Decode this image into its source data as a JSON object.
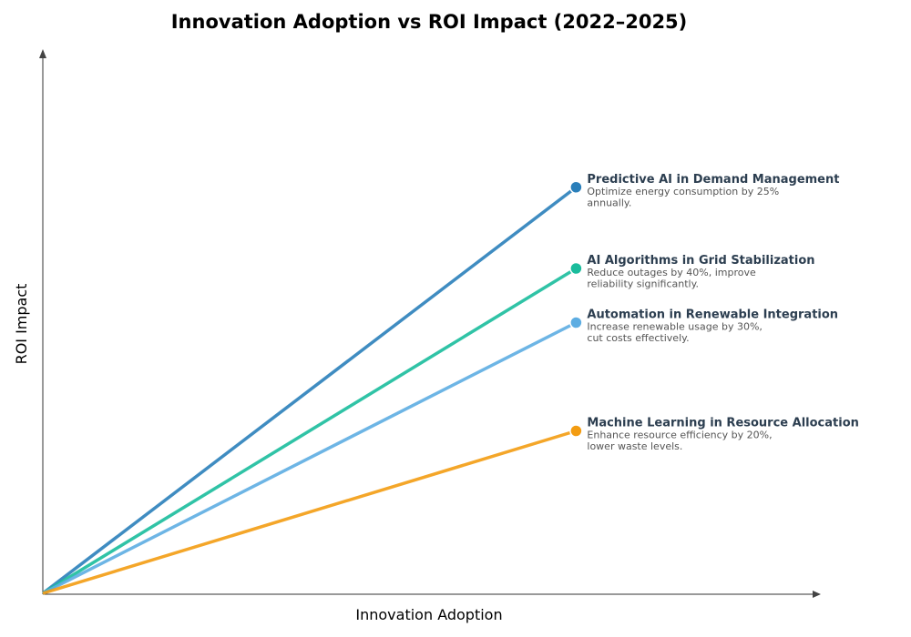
{
  "chart_data": {
    "type": "line",
    "title": "Innovation Adoption vs ROI Impact (2022–2025)",
    "xlabel": "Innovation Adoption",
    "ylabel": "ROI Impact",
    "xlim": [
      0,
      1.02
    ],
    "ylim": [
      0,
      1.0
    ],
    "grid": false,
    "ticks": false,
    "series": [
      {
        "name": "Predictive AI in Demand Management",
        "desc": [
          "Optimize energy consumption by 25%",
          "annually."
        ],
        "color": "#2a7fba",
        "x": [
          0,
          0.7
        ],
        "y": [
          0,
          0.75
        ]
      },
      {
        "name": "AI Algorithms in Grid Stabilization",
        "desc": [
          "Reduce outages by 40%, improve",
          "reliability significantly."
        ],
        "color": "#1abc9c",
        "x": [
          0,
          0.7
        ],
        "y": [
          0,
          0.6
        ]
      },
      {
        "name": "Automation in Renewable Integration",
        "desc": [
          "Increase renewable usage by 30%,",
          "cut costs effectively."
        ],
        "color": "#5dade2",
        "x": [
          0,
          0.7
        ],
        "y": [
          0,
          0.5
        ]
      },
      {
        "name": "Machine Learning in Resource Allocation",
        "desc": [
          "Enhance resource efficiency by 20%,",
          "lower waste levels."
        ],
        "color": "#f39c12",
        "x": [
          0,
          0.7
        ],
        "y": [
          0,
          0.3
        ]
      }
    ]
  }
}
